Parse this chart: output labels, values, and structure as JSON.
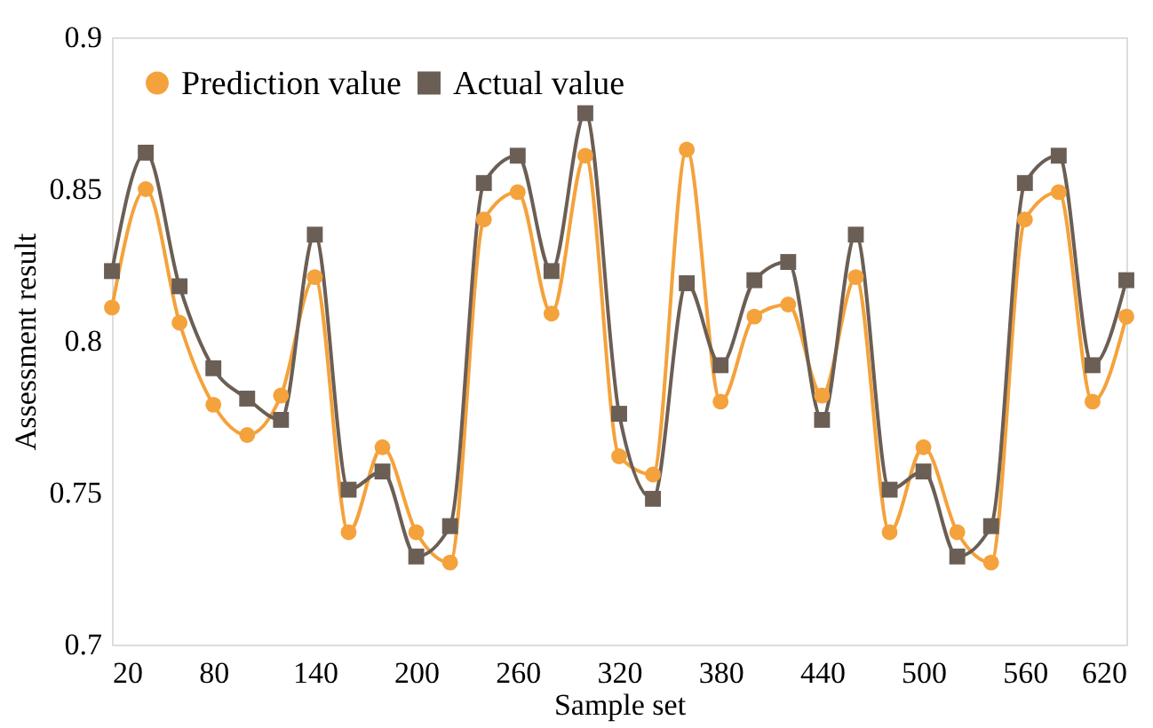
{
  "chart_data": {
    "type": "line",
    "xlabel": "Sample set",
    "ylabel": "Assessment result",
    "x": [
      20,
      40,
      60,
      80,
      100,
      120,
      140,
      160,
      180,
      200,
      220,
      240,
      260,
      280,
      300,
      320,
      340,
      360,
      380,
      400,
      420,
      440,
      460,
      480,
      500,
      520,
      540,
      560,
      580,
      600,
      620
    ],
    "series": [
      {
        "name": "Prediction value",
        "color": "#f4a23c",
        "marker": "circle",
        "values": [
          0.811,
          0.85,
          0.806,
          0.779,
          0.769,
          0.782,
          0.821,
          0.737,
          0.765,
          0.737,
          0.727,
          0.84,
          0.849,
          0.809,
          0.861,
          0.762,
          0.756,
          0.863,
          0.78,
          0.808,
          0.812,
          0.782,
          0.821,
          0.737,
          0.765,
          0.737,
          0.727,
          0.84,
          0.849,
          0.78,
          0.808
        ]
      },
      {
        "name": "Actual value",
        "color": "#6b5e55",
        "marker": "square",
        "values": [
          0.823,
          0.862,
          0.818,
          0.791,
          0.781,
          0.774,
          0.835,
          0.751,
          0.757,
          0.729,
          0.739,
          0.852,
          0.861,
          0.823,
          0.875,
          0.776,
          0.748,
          0.819,
          0.792,
          0.82,
          0.826,
          0.774,
          0.835,
          0.751,
          0.757,
          0.729,
          0.739,
          0.852,
          0.861,
          0.792,
          0.82
        ]
      }
    ],
    "xlim": [
      20,
      620
    ],
    "xticks": [
      20,
      80,
      140,
      200,
      260,
      320,
      380,
      440,
      500,
      560,
      620
    ],
    "ylim": [
      0.7,
      0.9
    ],
    "yticks": [
      {
        "value": 0.7,
        "label": "0.7"
      },
      {
        "value": 0.75,
        "label": "0.75"
      },
      {
        "value": 0.8,
        "label": "0.8"
      },
      {
        "value": 0.85,
        "label": "0.85"
      },
      {
        "value": 0.9,
        "label": "0.9"
      }
    ],
    "grid": false,
    "legend": "top left",
    "line_style": "solid"
  }
}
